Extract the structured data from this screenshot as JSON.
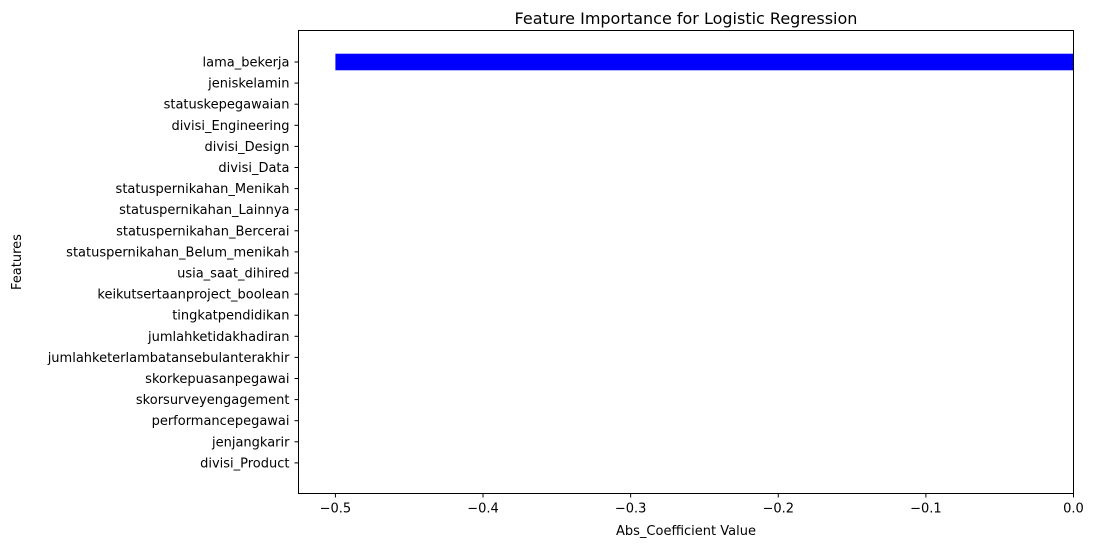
{
  "chart_data": {
    "type": "bar",
    "orientation": "horizontal",
    "title": "Feature Importance for Logistic Regression",
    "xlabel": "Abs_Coefficient Value",
    "ylabel": "Features",
    "categories": [
      "lama_bekerja",
      "jeniskelamin",
      "statuskepegawaian",
      "divisi_Engineering",
      "divisi_Design",
      "divisi_Data",
      "statuspernikahan_Menikah",
      "statuspernikahan_Lainnya",
      "statuspernikahan_Bercerai",
      "statuspernikahan_Belum_menikah",
      "usia_saat_dihired",
      "keikutsertaanproject_boolean",
      "tingkatpendidikan",
      "jumlahketidakhadiran",
      "jumlahketerlambatansebulanterakhir",
      "skorkepuasanpegawai",
      "skorsurveyengagement",
      "performancepegawai",
      "jenjangkarir",
      "divisi_Product"
    ],
    "values": [
      -0.5,
      0,
      0,
      0,
      0,
      0,
      0,
      0,
      0,
      0,
      0,
      0,
      0,
      0,
      0,
      0,
      0,
      0,
      0,
      0
    ],
    "xlim": [
      -0.525,
      0.0
    ],
    "xticks": [
      -0.5,
      -0.4,
      -0.3,
      -0.2,
      -0.1,
      0.0
    ],
    "xtick_labels": [
      "−0.5",
      "−0.4",
      "−0.3",
      "−0.2",
      "−0.1",
      "0.0"
    ],
    "bar_color": "#0000ff",
    "grid": false,
    "legend": "none"
  }
}
